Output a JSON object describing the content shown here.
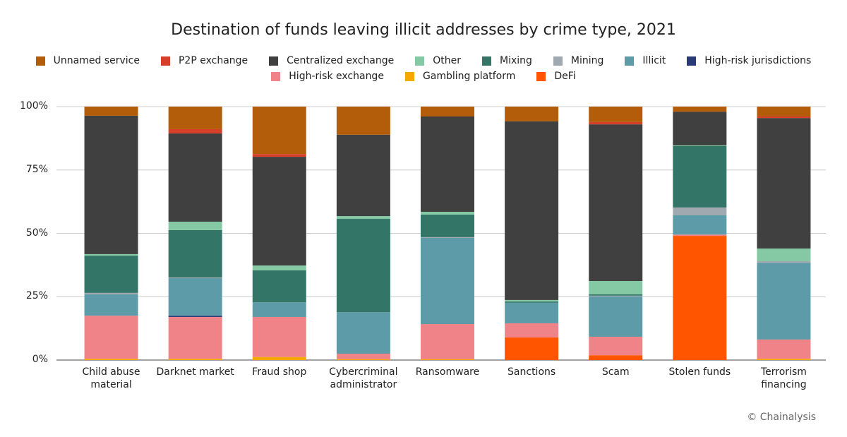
{
  "chart_data": {
    "type": "stacked_bar",
    "title": "Destination of funds leaving illicit addresses by crime type, 2021",
    "source": "© Chainalysis",
    "categories": [
      "Child abuse material",
      "Darknet market",
      "Fraud shop",
      "Cybercriminal administrator",
      "Ransomware",
      "Sanctions",
      "Scam",
      "Stolen funds",
      "Terrorism financing"
    ],
    "series": [
      {
        "name": "Unnamed service",
        "color": "#b35c0a",
        "values": [
          3.6,
          8.9,
          18.7,
          11.1,
          3.9,
          5.8,
          6.1,
          2,
          3.9
        ]
      },
      {
        "name": "P2P exchange",
        "color": "#d6402a",
        "values": [
          0,
          1.7,
          1.1,
          0,
          0,
          0,
          0.9,
          0,
          0.6
        ]
      },
      {
        "name": "Centralized exchange",
        "color": "#404040",
        "values": [
          54.6,
          34.8,
          42.9,
          32.1,
          37.6,
          70.5,
          61.8,
          13.3,
          51.5
        ]
      },
      {
        "name": "Other",
        "color": "#84c9a3",
        "values": [
          0.6,
          3.3,
          1.9,
          1.1,
          1.1,
          0.6,
          5.3,
          0.3,
          5
        ]
      },
      {
        "name": "Mixing",
        "color": "#337566",
        "values": [
          14.7,
          18.7,
          12.6,
          36.8,
          8.9,
          0.5,
          0.5,
          24.2,
          0
        ]
      },
      {
        "name": "Mining",
        "color": "#a0a8b0",
        "values": [
          0.6,
          0.3,
          0,
          0,
          0.3,
          0,
          0.3,
          3.1,
          0.6
        ]
      },
      {
        "name": "Illicit",
        "color": "#5e9ba8",
        "values": [
          8.4,
          14.8,
          5.8,
          16.4,
          34,
          8.1,
          15.9,
          7.6,
          30.3
        ]
      },
      {
        "name": "High-risk jurisdictions",
        "color": "#2a3a78",
        "values": [
          0,
          0.5,
          0,
          0,
          0,
          0,
          0,
          0,
          0
        ]
      },
      {
        "name": "High-risk exchange",
        "color": "#f08388",
        "values": [
          17,
          16.5,
          15.8,
          2.2,
          13.9,
          5.6,
          7.3,
          0.5,
          7.6
        ]
      },
      {
        "name": "Gambling platform",
        "color": "#f5a800",
        "values": [
          0.5,
          0.5,
          1.2,
          0.3,
          0.3,
          0,
          0,
          0,
          0.5
        ]
      },
      {
        "name": "DeFi",
        "color": "#ff5500",
        "values": [
          0,
          0,
          0,
          0,
          0,
          8.9,
          1.9,
          49,
          0
        ]
      }
    ],
    "ylim": [
      0,
      100
    ],
    "yticks": [
      {
        "value": 0,
        "label": "0%"
      },
      {
        "value": 25,
        "label": "25%"
      },
      {
        "value": 50,
        "label": "50%"
      },
      {
        "value": 75,
        "label": "75%"
      },
      {
        "value": 100,
        "label": "100%"
      }
    ],
    "grid": true
  }
}
